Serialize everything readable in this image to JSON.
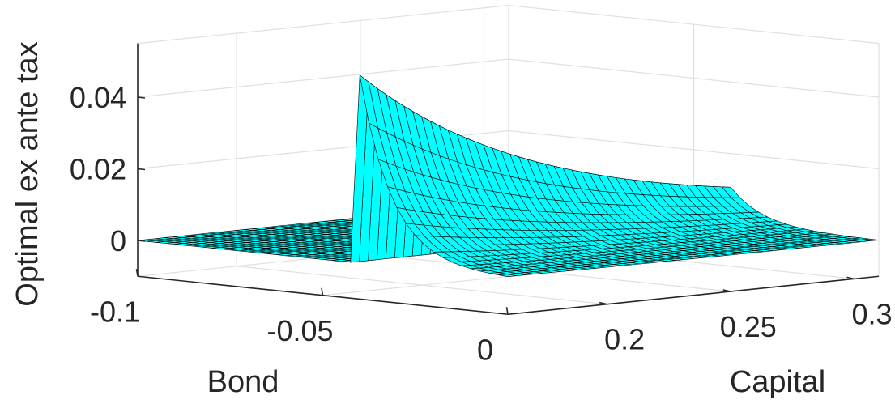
{
  "chart_data": {
    "type": "surface",
    "title": "",
    "xlabel": "Bond",
    "ylabel": "Capital",
    "zlabel": "Optimal ex ante tax",
    "xlim": [
      -0.1,
      0
    ],
    "ylim": [
      0.16,
      0.31
    ],
    "zlim": [
      -0.01,
      0.055
    ],
    "x_ticks": [
      -0.1,
      -0.05,
      0
    ],
    "x_tick_labels": [
      "-0.1",
      "-0.05",
      "0"
    ],
    "y_ticks": [
      0.2,
      0.25,
      0.3
    ],
    "y_tick_labels": [
      "0.2",
      "0.25",
      "0.3"
    ],
    "z_ticks": [
      0,
      0.02,
      0.04
    ],
    "z_tick_labels": [
      "0",
      "0.02",
      "0.04"
    ],
    "grid": true,
    "surface": {
      "face_color": "#00FFFF",
      "edge_color": "#000000",
      "description_points": [
        {
          "bond": -0.04,
          "capital": 0.16,
          "tax": 0.05
        },
        {
          "bond": -0.04,
          "capital": 0.205,
          "tax": 0.037
        },
        {
          "bond": -0.04,
          "capital": 0.25,
          "tax": 0.031
        },
        {
          "bond": -0.001,
          "capital": 0.16,
          "tax": 0.0
        },
        {
          "bond": -0.1,
          "capital": 0.31,
          "tax": 0.0
        }
      ]
    }
  }
}
